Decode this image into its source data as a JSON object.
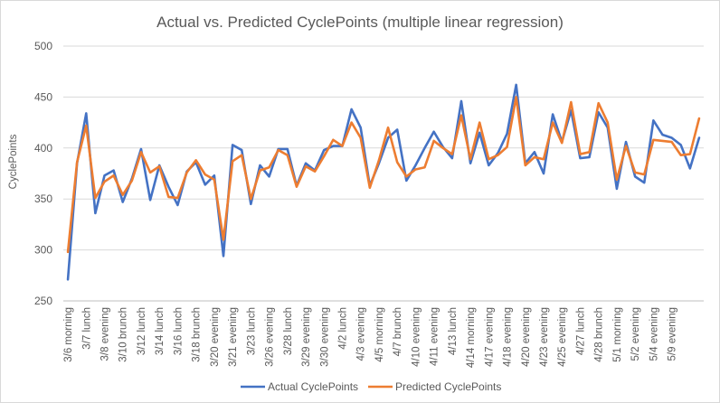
{
  "chart_data": {
    "type": "line",
    "title": "Actual vs. Predicted CyclePoints (multiple linear regression)",
    "xlabel": "",
    "ylabel": "CyclePoints",
    "ylim": [
      250,
      500
    ],
    "yticks": [
      250,
      300,
      350,
      400,
      450,
      500
    ],
    "grid": "horizontal",
    "legend": "bottom",
    "tick_labels": [
      "3/6 morning",
      "3/7 lunch",
      "3/8 evening",
      "3/10 brunch",
      "3/12 lunch",
      "3/14 lunch",
      "3/16 lunch",
      "3/18 brunch",
      "3/20 evening",
      "3/21 evening",
      "3/23 lunch",
      "3/26 evening",
      "3/28 lunch",
      "3/29 evening",
      "3/30 evening",
      "4/2 lunch",
      "4/3 evening",
      "4/5 morning",
      "4/7 brunch",
      "4/10 evening",
      "4/11 evening",
      "4/13 lunch",
      "4/14 morning",
      "4/17 evening",
      "4/18 evening",
      "4/20 evening",
      "4/23 evening",
      "4/25 evening",
      "4/27 lunch",
      "4/28 brunch",
      "5/1 morning",
      "5/2 evening",
      "5/4 evening",
      "5/9 evening"
    ],
    "series": [
      {
        "name": "Actual CyclePoints",
        "color": "#4472c4",
        "values": [
          271,
          385,
          434,
          336,
          373,
          378,
          347,
          370,
          399,
          349,
          383,
          362,
          344,
          377,
          386,
          364,
          373,
          294,
          403,
          398,
          345,
          383,
          372,
          399,
          399,
          363,
          385,
          378,
          398,
          402,
          402,
          438,
          420,
          363,
          385,
          410,
          418,
          368,
          383,
          400,
          416,
          401,
          390,
          446,
          385,
          415,
          383,
          395,
          414,
          462,
          385,
          396,
          375,
          433,
          406,
          437,
          390,
          391,
          435,
          420,
          360,
          406,
          372,
          366,
          427,
          413,
          410,
          403,
          380,
          410
        ]
      },
      {
        "name": "Predicted CyclePoints",
        "color": "#ed7d31",
        "values": [
          298,
          386,
          422,
          351,
          367,
          373,
          354,
          368,
          396,
          376,
          382,
          352,
          351,
          376,
          388,
          374,
          369,
          310,
          387,
          393,
          350,
          378,
          381,
          398,
          393,
          362,
          382,
          377,
          392,
          408,
          402,
          425,
          410,
          361,
          388,
          420,
          386,
          372,
          379,
          381,
          407,
          400,
          394,
          432,
          389,
          425,
          389,
          393,
          401,
          450,
          383,
          391,
          389,
          425,
          405,
          445,
          394,
          396,
          444,
          425,
          369,
          402,
          376,
          374,
          408,
          407,
          406,
          393,
          394,
          429
        ]
      }
    ]
  }
}
